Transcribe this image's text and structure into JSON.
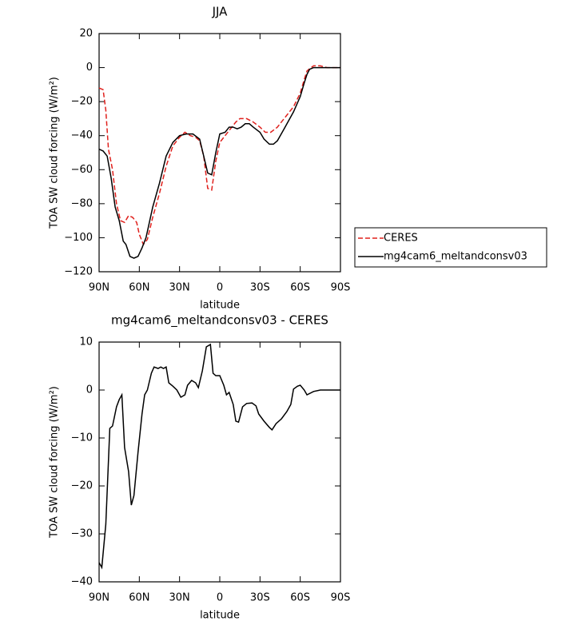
{
  "chart_data": [
    {
      "type": "line",
      "title": "JJA",
      "x_label": "latitude",
      "y_label": "TOA SW cloud forcing (W/m²)",
      "xlim": [
        90,
        -90
      ],
      "ylim": [
        20,
        -120
      ],
      "xticks": [
        {
          "value": 90,
          "label": "90N"
        },
        {
          "value": 60,
          "label": "60N"
        },
        {
          "value": 30,
          "label": "30N"
        },
        0,
        {
          "value": -30,
          "label": "30S"
        },
        {
          "value": -60,
          "label": "60S"
        },
        {
          "value": -90,
          "label": "90S"
        }
      ],
      "yticks": [
        20,
        0,
        {
          "value": -20,
          "label": "−20"
        },
        {
          "value": -40,
          "label": "−40"
        },
        {
          "value": -60,
          "label": "−60"
        },
        {
          "value": -80,
          "label": "−80"
        },
        {
          "value": -100,
          "label": "−100"
        },
        {
          "value": -120,
          "label": "−120"
        }
      ],
      "legend": "right",
      "series": [
        {
          "name": "CERES",
          "color": "#e0201c",
          "dash": true,
          "x": [
            90,
            87,
            85,
            83,
            80,
            77,
            74,
            71,
            68,
            65,
            62,
            60,
            57,
            54,
            50,
            45,
            40,
            35,
            30,
            26,
            22,
            18,
            15,
            12,
            9,
            6,
            3,
            0,
            -4,
            -8,
            -12,
            -15,
            -20,
            -25,
            -30,
            -34,
            -38,
            -43,
            -48,
            -55,
            -60,
            -63,
            -65,
            -68,
            -70,
            -75,
            -80,
            -90
          ],
          "values": [
            -12,
            -13,
            -25,
            -48,
            -60,
            -80,
            -90,
            -91,
            -87,
            -88,
            -91,
            -98,
            -104,
            -101,
            -88,
            -74,
            -58,
            -46,
            -41,
            -38,
            -40,
            -41,
            -43,
            -52,
            -71,
            -72,
            -55,
            -44,
            -40,
            -36,
            -32,
            -30,
            -30,
            -32,
            -35,
            -38,
            -38,
            -35,
            -30,
            -23,
            -15,
            -7,
            -2,
            0,
            1,
            1,
            0,
            0
          ]
        },
        {
          "name": "mg4cam6_meltandconsv03",
          "color": "#000000",
          "dash": false,
          "x": [
            90,
            87,
            84,
            81,
            78,
            75,
            72,
            70,
            67,
            64,
            61,
            58,
            55,
            50,
            45,
            40,
            35,
            30,
            25,
            20,
            15,
            12,
            9,
            6,
            3,
            0,
            -4,
            -7,
            -10,
            -13,
            -16,
            -19,
            -22,
            -25,
            -30,
            -33,
            -37,
            -40,
            -43,
            -48,
            -55,
            -60,
            -63,
            -65,
            -67,
            -70,
            -75,
            -80,
            -85,
            -90
          ],
          "values": [
            -48,
            -49,
            -52,
            -65,
            -82,
            -90,
            -102,
            -104,
            -111,
            -112,
            -111,
            -106,
            -100,
            -82,
            -68,
            -52,
            -44,
            -40,
            -39,
            -39,
            -42,
            -52,
            -62,
            -63,
            -50,
            -39,
            -38,
            -35,
            -35,
            -36,
            -35,
            -33,
            -33,
            -35,
            -38,
            -42,
            -45,
            -45,
            -43,
            -36,
            -26,
            -17,
            -9,
            -4,
            -1,
            0,
            0,
            0,
            0,
            0
          ]
        }
      ]
    },
    {
      "type": "line",
      "title": "mg4cam6_meltandconsv03 - CERES",
      "x_label": "latitude",
      "y_label": "TOA SW cloud forcing (W/m²)",
      "xlim": [
        90,
        -90
      ],
      "ylim": [
        10,
        -40
      ],
      "xticks": [
        {
          "value": 90,
          "label": "90N"
        },
        {
          "value": 60,
          "label": "60N"
        },
        {
          "value": 30,
          "label": "30N"
        },
        0,
        {
          "value": -30,
          "label": "30S"
        },
        {
          "value": -60,
          "label": "60S"
        },
        {
          "value": -90,
          "label": "90S"
        }
      ],
      "yticks": [
        10,
        0,
        {
          "value": -10,
          "label": "−10"
        },
        {
          "value": -20,
          "label": "−20"
        },
        {
          "value": -30,
          "label": "−30"
        },
        {
          "value": -40,
          "label": "−40"
        }
      ],
      "series": [
        {
          "color": "#000000",
          "dash": false,
          "x": [
            90,
            88,
            85,
            82,
            80,
            77,
            75,
            73,
            71,
            68,
            66,
            64,
            61,
            58,
            56,
            54,
            51,
            49,
            46,
            44,
            42,
            40,
            38,
            35,
            32,
            29,
            26,
            24,
            21,
            18,
            16,
            13,
            10,
            7,
            5,
            3,
            0,
            -3,
            -5,
            -7,
            -10,
            -12,
            -14,
            -17,
            -20,
            -24,
            -27,
            -29,
            -33,
            -37,
            -39,
            -42,
            -46,
            -50,
            -53,
            -55,
            -58,
            -60,
            -63,
            -65,
            -70,
            -75,
            -85,
            -90
          ],
          "values": [
            -36,
            -37,
            -28,
            -8,
            -7.5,
            -3.5,
            -2,
            -1,
            -12,
            -17,
            -24,
            -22,
            -13,
            -5,
            -1,
            0,
            3.5,
            4.8,
            4.5,
            4.8,
            4.5,
            4.8,
            1.5,
            0.8,
            0,
            -1.5,
            -1,
            1,
            2,
            1.5,
            0.5,
            4,
            9,
            9.5,
            3.5,
            3,
            3,
            1,
            -1,
            -0.5,
            -3,
            -6.5,
            -6.7,
            -3.5,
            -2.8,
            -2.7,
            -3.3,
            -5,
            -6.5,
            -7.8,
            -8.3,
            -7,
            -6,
            -4.5,
            -3,
            0.2,
            0.8,
            1,
            0,
            -1,
            -0.3,
            0,
            0,
            0
          ]
        }
      ]
    }
  ]
}
